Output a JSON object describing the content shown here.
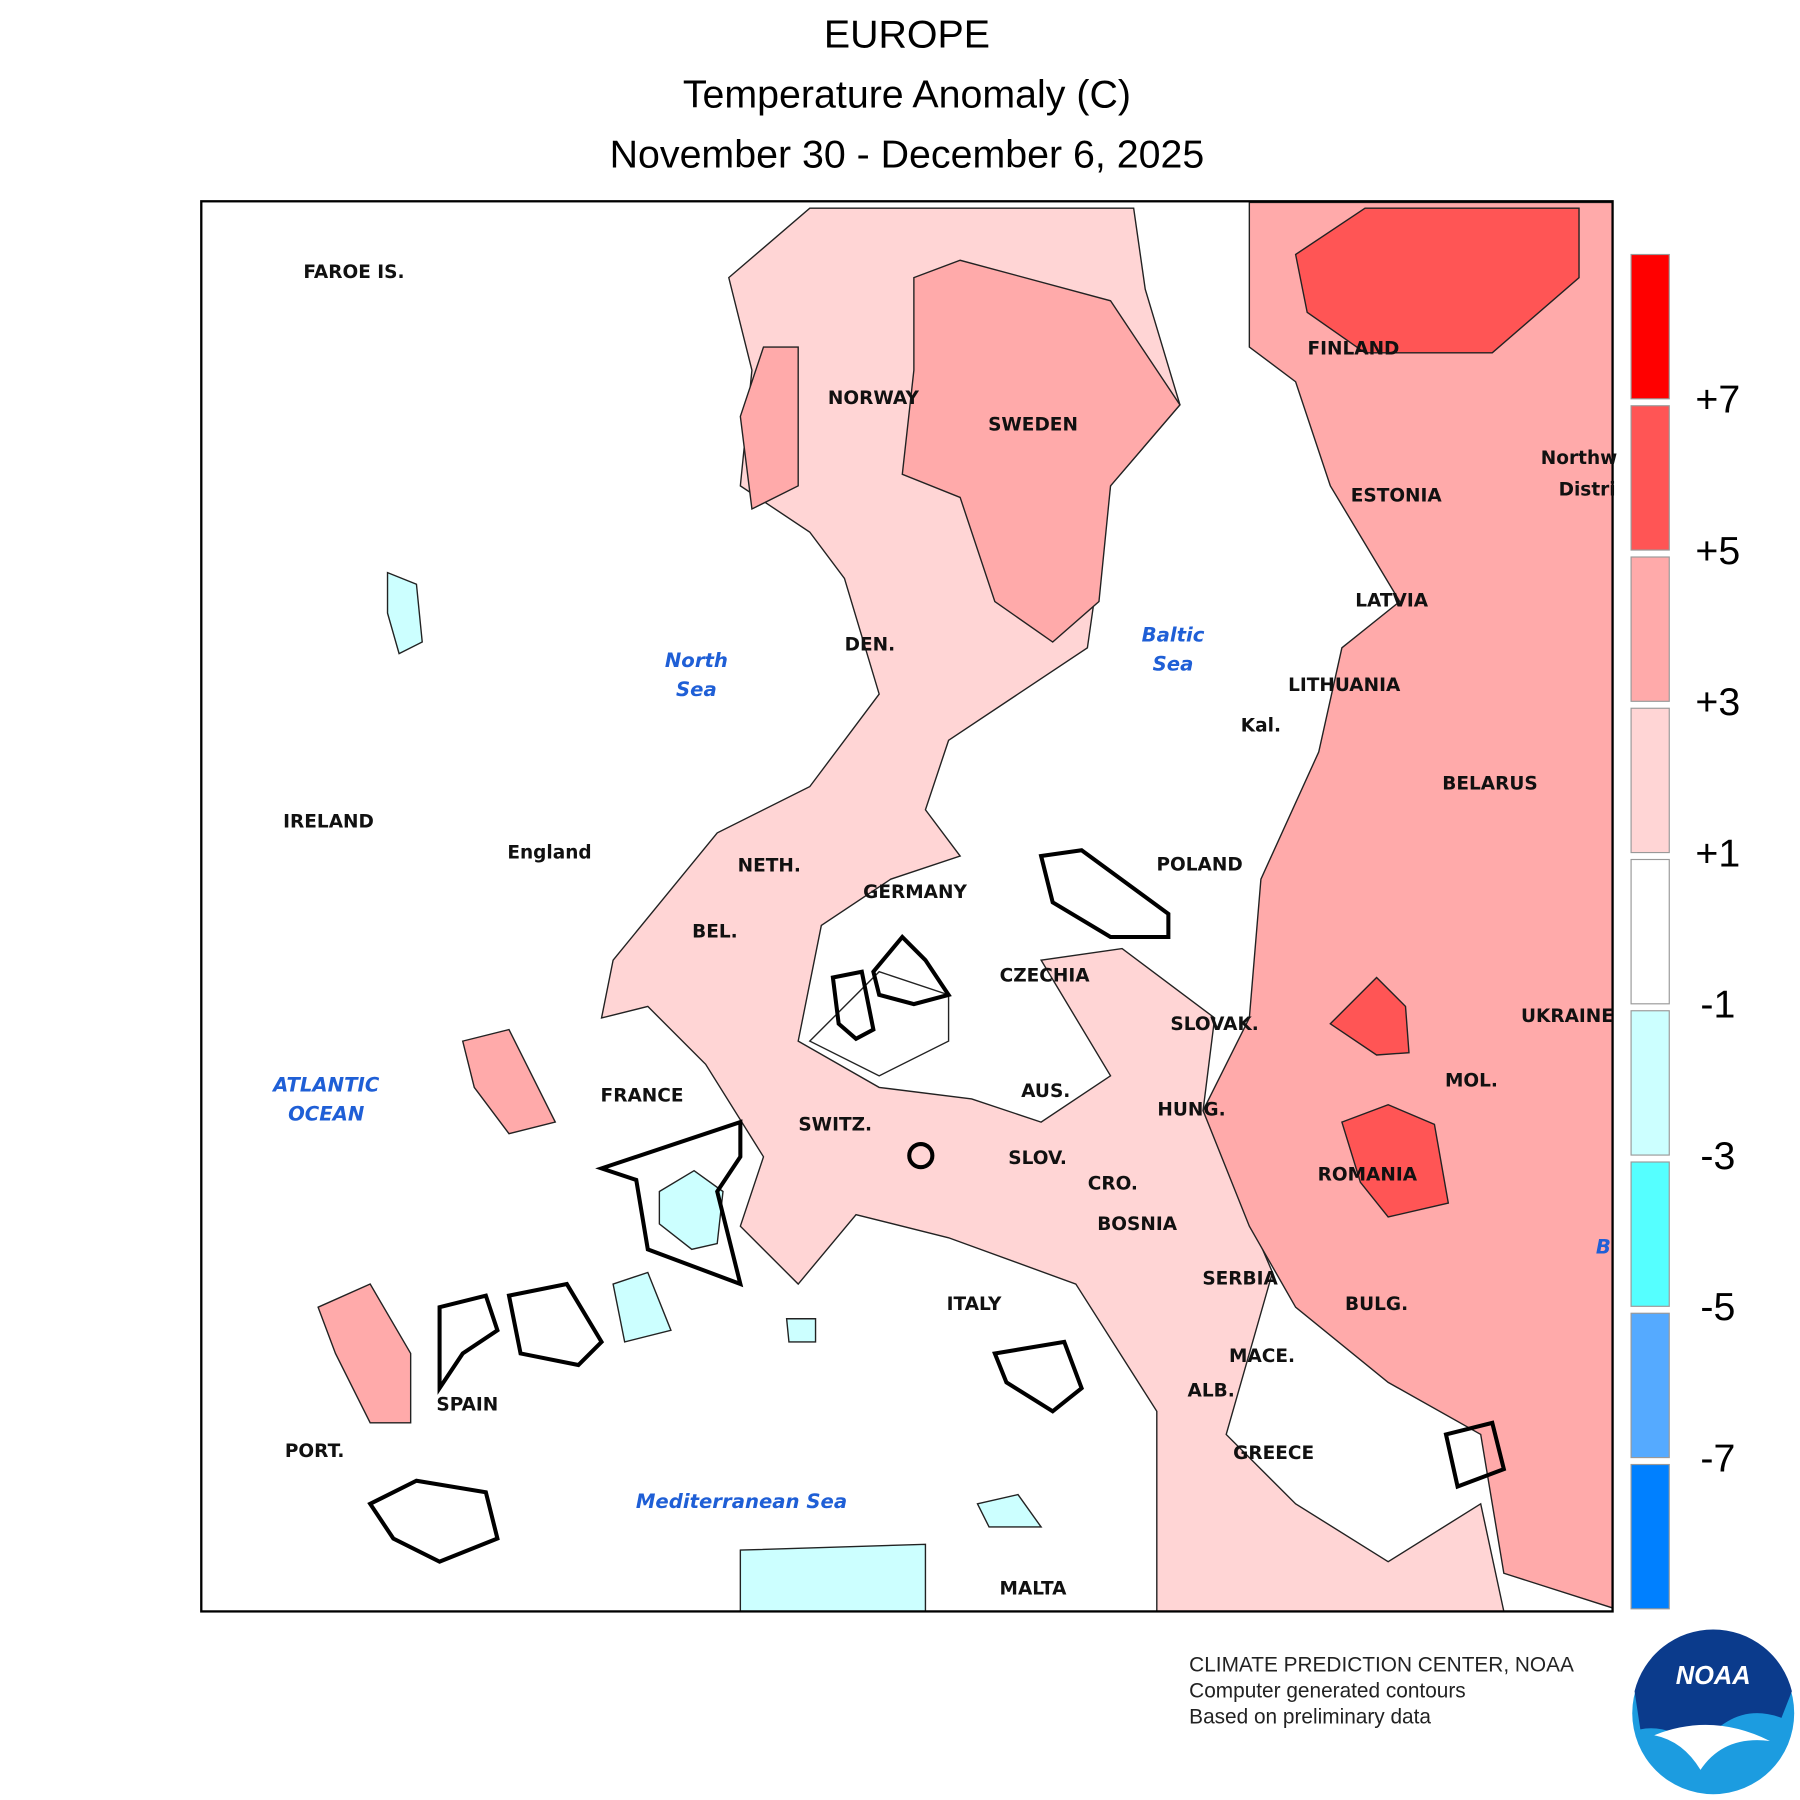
{
  "header": {
    "title": [
      "EUROPE",
      "Temperature Anomaly (C)",
      "November 30 - December 6, 2025"
    ]
  },
  "map": {
    "labels": [
      "FAROE IS.",
      "NORWAY",
      "SWEDEN",
      "FINLAND",
      "ESTONIA",
      "LATVIA",
      "LITHUANIA",
      "Kal.",
      "BELARUS",
      "POLAND",
      "Northw",
      "Distri",
      "UKRAINE",
      "MOL.",
      "ROMANIA",
      "HUNG.",
      "SLOVAK.",
      "CZECHIA",
      "GERMANY",
      "NETH.",
      "BEL.",
      "DEN.",
      "IRELAND",
      "England",
      "FRANCE",
      "SWITZ.",
      "AUS.",
      "SLOV.",
      "CRO.",
      "BOSNIA",
      "SERBIA",
      "BULG.",
      "MACE.",
      "ALB.",
      "GREECE",
      "ITALY",
      "SPAIN",
      "PORT.",
      "MALTA"
    ],
    "sea_labels": [
      "North",
      "Sea",
      "Baltic",
      "Sea",
      "ATLANTIC",
      "OCEAN",
      "Mediterranean Sea",
      "B"
    ]
  },
  "colorbar": {
    "colors": [
      "#ff0000",
      "#ff5555",
      "#ffaaaa",
      "#ffd5d5",
      "#ffffff",
      "#ccffff",
      "#55ffff",
      "#55aaff",
      "#0080ff"
    ],
    "ticks": [
      {
        "value": 7,
        "label": "+7"
      },
      {
        "value": 5,
        "label": "+5"
      },
      {
        "value": 3,
        "label": "+3"
      },
      {
        "value": 1,
        "label": "+1"
      },
      {
        "value": -1,
        "label": "-1"
      },
      {
        "value": -3,
        "label": "-3"
      },
      {
        "value": -5,
        "label": "-5"
      },
      {
        "value": -7,
        "label": "-7"
      }
    ]
  },
  "footer": {
    "lines": [
      "CLIMATE PREDICTION CENTER, NOAA",
      "Computer generated contours",
      "Based on preliminary data"
    ]
  },
  "logo": {
    "text": "NOAA"
  }
}
